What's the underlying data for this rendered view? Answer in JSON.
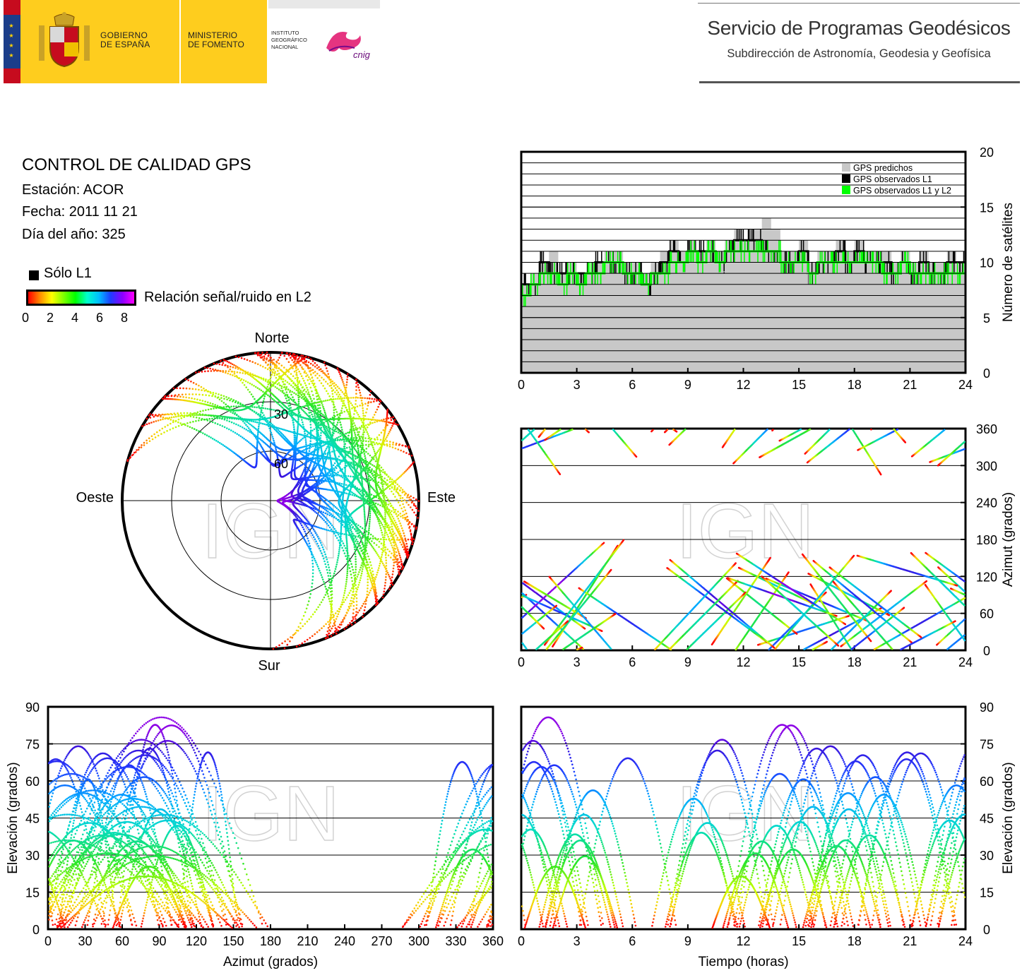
{
  "header": {
    "gobierno_line1": "GOBIERNO",
    "gobierno_line2": "DE ESPAÑA",
    "ministerio_line1": "MINISTERIO",
    "ministerio_line2": "DE FOMENTO",
    "ign_line1": "INSTITUTO",
    "ign_line2": "GEOGRÁFICO",
    "ign_line3": "NACIONAL",
    "cnig_logo_text": "cnig",
    "service_title": "Servicio de Programas Geodésicos",
    "service_subtitle": "Subdirección de Astronomía, Geodesia y Geofísica"
  },
  "info": {
    "title": "CONTROL DE CALIDAD GPS",
    "station": "Estación: ACOR",
    "date": "Fecha: 2011 11 21",
    "doy": "Día del año: 325",
    "legend_l1": "Sólo L1",
    "colorbar_label": "Relación señal/ruido en L2",
    "colorbar_ticks": [
      "0",
      "2",
      "4",
      "6",
      "8"
    ]
  },
  "watermark": "IGN",
  "colors": {
    "gov_yellow": "#fecd1e",
    "flag_red": "#c60b1e",
    "flag_blue": "#1b3d8a",
    "predicted_gray": "#c8c8c8",
    "observed_l1": "#000000",
    "observed_l1_l2": "#00ff00",
    "colorbar": [
      "#ff0000",
      "#ff8c00",
      "#ffff00",
      "#7fff00",
      "#00ff00",
      "#00ffcc",
      "#00bfff",
      "#1e3cff",
      "#8a00ff",
      "#ff00ff"
    ]
  },
  "chart_data": [
    {
      "id": "polar",
      "type": "scatter",
      "title": "",
      "direction_labels": {
        "north": "Norte",
        "south": "Sur",
        "east": "Este",
        "west": "Oeste"
      },
      "rings": [
        0,
        30,
        60
      ],
      "ring_labels": [
        "30",
        "60"
      ],
      "grid": true,
      "note": "sky plot of satellite tracks, azimuth vs elevation, colored by L2 SNR"
    },
    {
      "id": "count",
      "type": "area",
      "xlabel": "",
      "ylabel": "Número de satélites",
      "xlim": [
        0,
        24
      ],
      "ylim": [
        0,
        20
      ],
      "xticks": [
        "0",
        "3",
        "6",
        "9",
        "12",
        "15",
        "18",
        "21",
        "24"
      ],
      "yticks": [
        "0",
        "5",
        "10",
        "15",
        "20"
      ],
      "legend": [
        "GPS predichos",
        "GPS observados L1",
        "GPS observados L1 y L2"
      ],
      "legend_position": "top-right",
      "grid": true,
      "series": [
        {
          "name": "GPS predichos",
          "x": [
            0,
            0.5,
            1,
            1.5,
            2,
            2.5,
            3,
            3.5,
            4,
            4.5,
            5,
            5.5,
            6,
            6.5,
            7,
            7.5,
            8,
            8.5,
            9,
            9.5,
            10,
            10.5,
            11,
            11.5,
            12,
            12.5,
            13,
            13.5,
            14,
            14.5,
            15,
            15.5,
            16,
            16.5,
            17,
            17.5,
            18,
            18.5,
            19,
            19.5,
            20,
            20.5,
            21,
            21.5,
            22,
            22.5,
            23,
            23.5,
            24
          ],
          "y": [
            8,
            9,
            10,
            11,
            9,
            10,
            9,
            9,
            10,
            11,
            11,
            10,
            10,
            9,
            10,
            11,
            12,
            11,
            12,
            11,
            12,
            11,
            12,
            13,
            12,
            13,
            14,
            13,
            11,
            11,
            12,
            10,
            11,
            11,
            12,
            11,
            12,
            11,
            11,
            11,
            10,
            11,
            10,
            11,
            10,
            10,
            11,
            10,
            9
          ]
        },
        {
          "name": "GPS observados L1",
          "x": [
            0,
            0.5,
            1,
            1.5,
            2,
            2.5,
            3,
            3.5,
            4,
            4.5,
            5,
            5.5,
            6,
            6.5,
            7,
            7.5,
            8,
            8.5,
            9,
            9.5,
            10,
            10.5,
            11,
            11.5,
            12,
            12.5,
            13,
            13.5,
            14,
            14.5,
            15,
            15.5,
            16,
            16.5,
            17,
            17.5,
            18,
            18.5,
            19,
            19.5,
            20,
            20.5,
            21,
            21.5,
            22,
            22.5,
            23,
            23.5,
            24
          ],
          "y": [
            8,
            8,
            10,
            9,
            9,
            9,
            9,
            9,
            10,
            10,
            10,
            9,
            9,
            8,
            9,
            10,
            11,
            10,
            11,
            11,
            11,
            10,
            11,
            12,
            12,
            12,
            11,
            11,
            10,
            10,
            11,
            9,
            10,
            10,
            11,
            10,
            11,
            10,
            10,
            10,
            9,
            10,
            9,
            10,
            9,
            9,
            10,
            10,
            9
          ]
        },
        {
          "name": "GPS observados L1 y L2",
          "x": [
            0,
            0.5,
            1,
            1.5,
            2,
            2.5,
            3,
            3.5,
            4,
            4.5,
            5,
            5.5,
            6,
            6.5,
            7,
            7.5,
            8,
            8.5,
            9,
            9.5,
            10,
            10.5,
            11,
            11.5,
            12,
            12.5,
            13,
            13.5,
            14,
            14.5,
            15,
            15.5,
            16,
            16.5,
            17,
            17.5,
            18,
            18.5,
            19,
            19.5,
            20,
            20.5,
            21,
            21.5,
            22,
            22.5,
            23,
            23.5,
            24
          ],
          "y": [
            7,
            8,
            9,
            9,
            8,
            9,
            8,
            9,
            9,
            10,
            10,
            9,
            9,
            8,
            9,
            9,
            10,
            10,
            11,
            10,
            11,
            10,
            11,
            11,
            11,
            11,
            11,
            11,
            10,
            10,
            10,
            9,
            10,
            10,
            10,
            10,
            10,
            10,
            10,
            9,
            9,
            10,
            9,
            9,
            9,
            9,
            9,
            9,
            8
          ]
        }
      ]
    },
    {
      "id": "azimuth_time",
      "type": "scatter",
      "xlabel": "",
      "ylabel": "Azimut (grados)",
      "xlim": [
        0,
        24
      ],
      "ylim": [
        0,
        360
      ],
      "xticks": [
        "0",
        "3",
        "6",
        "9",
        "12",
        "15",
        "18",
        "21",
        "24"
      ],
      "yticks": [
        "0",
        "60",
        "120",
        "180",
        "240",
        "300",
        "360"
      ],
      "grid": true
    },
    {
      "id": "elev_azimuth",
      "type": "scatter",
      "xlabel": "Azimut (grados)",
      "ylabel": "Elevación (grados)",
      "xlim": [
        0,
        360
      ],
      "ylim": [
        0,
        90
      ],
      "xticks": [
        "0",
        "30",
        "60",
        "90",
        "120",
        "150",
        "180",
        "210",
        "240",
        "270",
        "300",
        "330",
        "360"
      ],
      "yticks": [
        "0",
        "15",
        "30",
        "45",
        "60",
        "75",
        "90"
      ],
      "grid": true
    },
    {
      "id": "elev_time",
      "type": "scatter",
      "xlabel": "Tiempo (horas)",
      "ylabel": "Elevación (grados)",
      "xlim": [
        0,
        24
      ],
      "ylim": [
        0,
        90
      ],
      "xticks": [
        "0",
        "3",
        "6",
        "9",
        "12",
        "15",
        "18",
        "21",
        "24"
      ],
      "yticks": [
        "0",
        "15",
        "30",
        "45",
        "60",
        "75",
        "90"
      ],
      "grid": true
    }
  ]
}
